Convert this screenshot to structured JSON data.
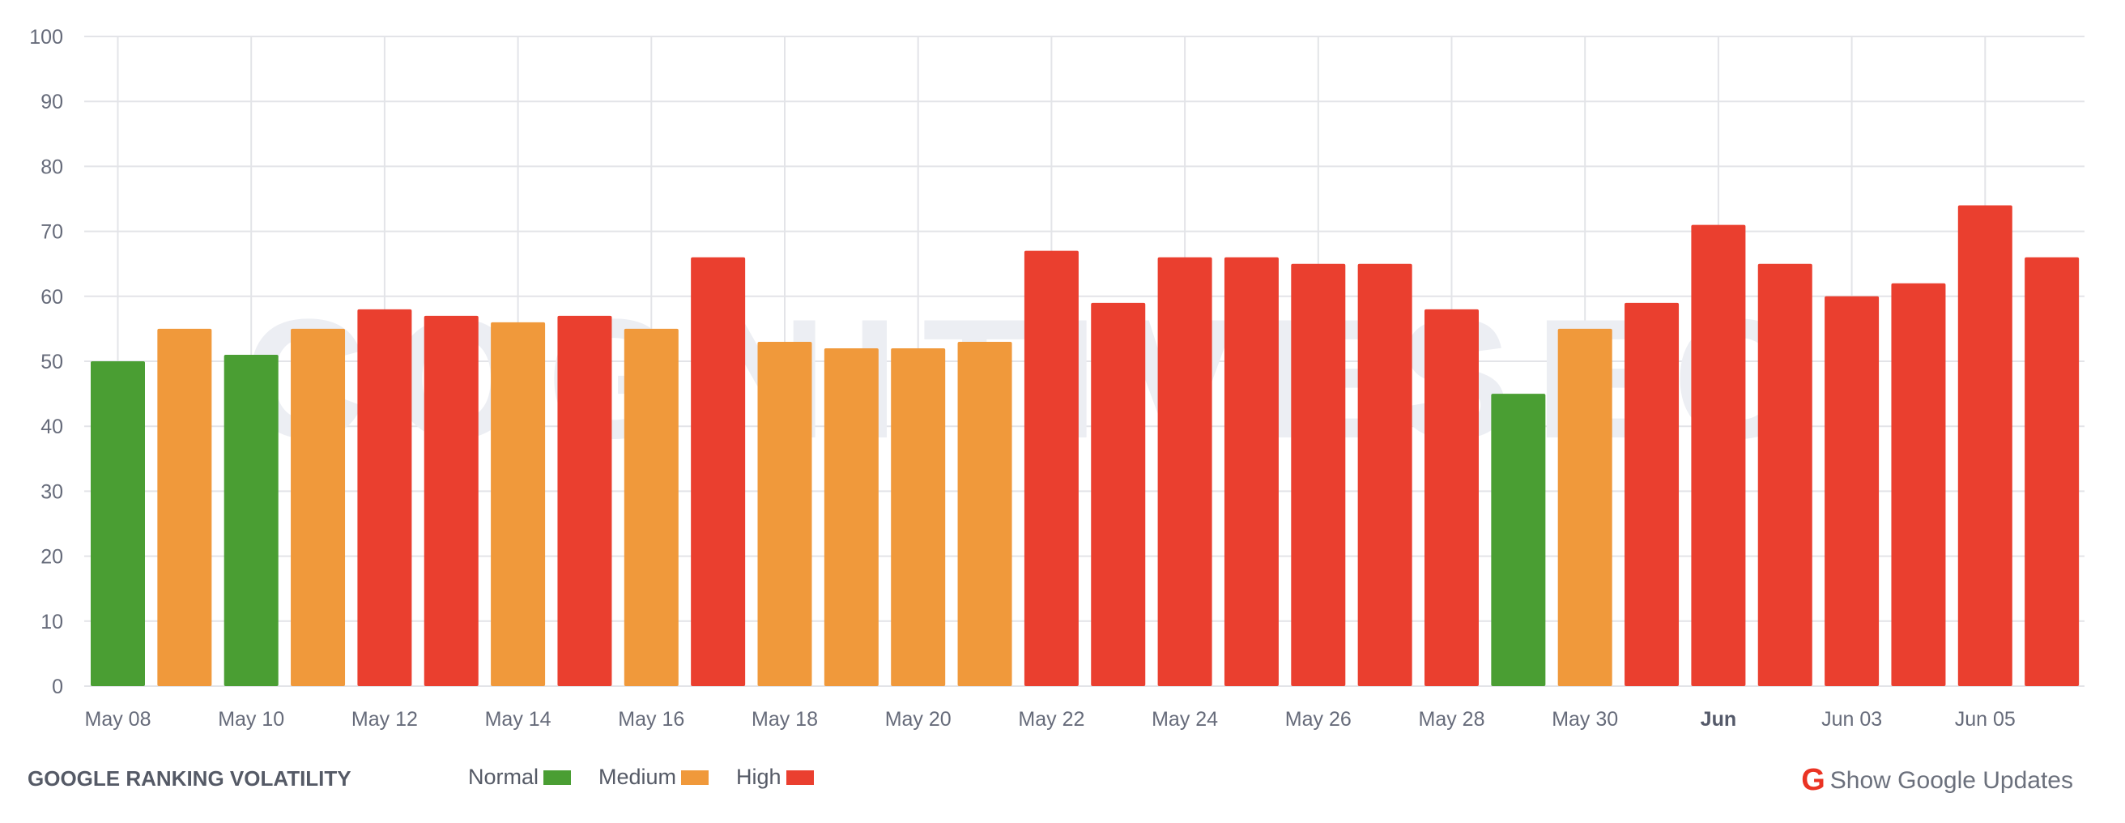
{
  "chart_data": {
    "type": "bar",
    "title": "GOOGLE RANKING VOLATILITY",
    "xlabel": "",
    "ylabel": "",
    "ylim": [
      0,
      100
    ],
    "yticks": [
      "0",
      "10",
      "20",
      "30",
      "40",
      "50",
      "60",
      "70",
      "80",
      "90",
      "100"
    ],
    "grid": true,
    "legend_placement": "bottom",
    "categories": [
      "May 08",
      "May 09",
      "May 10",
      "May 11",
      "May 12",
      "May 13",
      "May 14",
      "May 15",
      "May 16",
      "May 17",
      "May 18",
      "May 19",
      "May 20",
      "May 21",
      "May 22",
      "May 23",
      "May 24",
      "May 25",
      "May 26",
      "May 27",
      "May 28",
      "May 29",
      "May 30",
      "May 31",
      "Jun 01",
      "Jun 02",
      "Jun 03",
      "Jun 04",
      "Jun 05",
      "Jun 06"
    ],
    "values": [
      50,
      55,
      51,
      55,
      58,
      57,
      56,
      57,
      55,
      66,
      53,
      52,
      52,
      53,
      67,
      59,
      66,
      66,
      65,
      65,
      58,
      45,
      55,
      59,
      71,
      65,
      60,
      62,
      74,
      66
    ],
    "levels": [
      "Normal",
      "Medium",
      "Normal",
      "Medium",
      "High",
      "High",
      "Medium",
      "High",
      "Medium",
      "High",
      "Medium",
      "Medium",
      "Medium",
      "Medium",
      "High",
      "High",
      "High",
      "High",
      "High",
      "High",
      "High",
      "Normal",
      "Medium",
      "High",
      "High",
      "High",
      "High",
      "High",
      "High",
      "High"
    ],
    "xtick_labels": [
      {
        "index": 0,
        "label": "May 08",
        "bold": false
      },
      {
        "index": 2,
        "label": "May 10",
        "bold": false
      },
      {
        "index": 4,
        "label": "May 12",
        "bold": false
      },
      {
        "index": 6,
        "label": "May 14",
        "bold": false
      },
      {
        "index": 8,
        "label": "May 16",
        "bold": false
      },
      {
        "index": 10,
        "label": "May 18",
        "bold": false
      },
      {
        "index": 12,
        "label": "May 20",
        "bold": false
      },
      {
        "index": 14,
        "label": "May 22",
        "bold": false
      },
      {
        "index": 16,
        "label": "May 24",
        "bold": false
      },
      {
        "index": 18,
        "label": "May 26",
        "bold": false
      },
      {
        "index": 20,
        "label": "May 28",
        "bold": false
      },
      {
        "index": 22,
        "label": "May 30",
        "bold": false
      },
      {
        "index": 24,
        "label": "Jun",
        "bold": true
      },
      {
        "index": 26,
        "label": "Jun 03",
        "bold": false
      },
      {
        "index": 28,
        "label": "Jun 05",
        "bold": false
      }
    ],
    "legend": [
      {
        "name": "Normal",
        "color": "#4a9e33"
      },
      {
        "name": "Medium",
        "color": "#f0993b"
      },
      {
        "name": "High",
        "color": "#ea3f2f"
      }
    ]
  },
  "watermark": "COGNITIVESEO",
  "footer": {
    "title": "GOOGLE RANKING VOLATILITY",
    "legend": [
      "Normal",
      "Medium",
      "High"
    ],
    "google_updates_icon": "google-g-icon",
    "google_updates_label": "Show Google Updates"
  }
}
